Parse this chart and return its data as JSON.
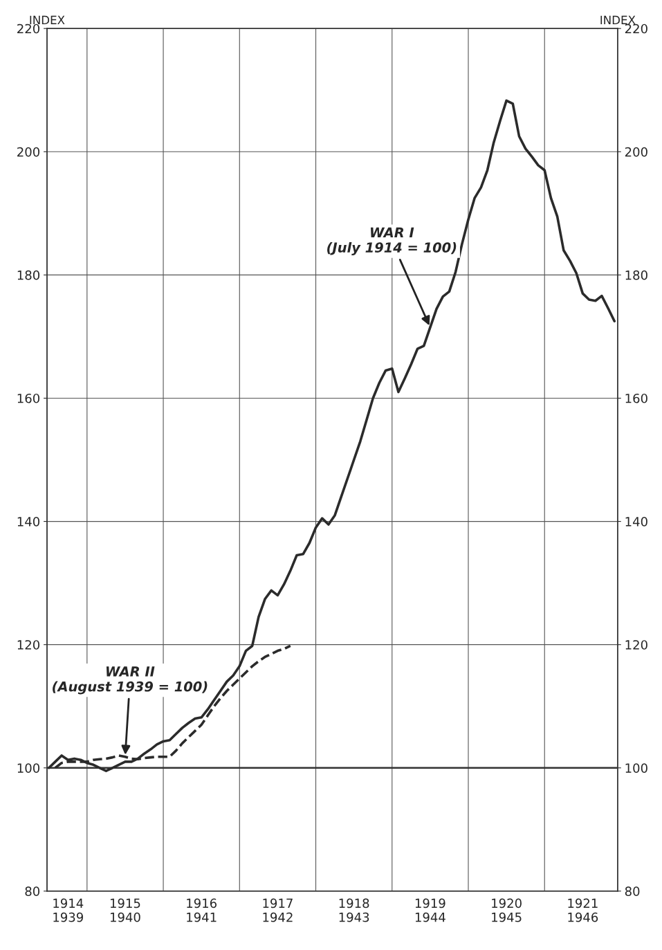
{
  "chart_data": {
    "type": "line",
    "ylabel": "INDEX",
    "y2label": "INDEX",
    "ylim": [
      80,
      220
    ],
    "y2lim": [
      80,
      220
    ],
    "yticks": [
      80,
      100,
      120,
      140,
      160,
      180,
      200,
      220
    ],
    "y2ticks": [
      80,
      100,
      120,
      140,
      160,
      180,
      200,
      220
    ],
    "categories": [
      null,
      null,
      null,
      "1914\n1939",
      null,
      null,
      null,
      null,
      null,
      null,
      null,
      null,
      "1915\n1940",
      null,
      null,
      null,
      null,
      null,
      null,
      null,
      null,
      null,
      null,
      null,
      "1916\n1941",
      null,
      null,
      null,
      null,
      null,
      null,
      null,
      null,
      null,
      null,
      null,
      "1917\n1942",
      null,
      null,
      null,
      null,
      null,
      null,
      null,
      null,
      null,
      null,
      null,
      "1918\n1943",
      null,
      null,
      null,
      null,
      null,
      null,
      null,
      null,
      null,
      null,
      null,
      "1919\n1944",
      null,
      null,
      null,
      null,
      null,
      null,
      null,
      null,
      null,
      null,
      null,
      "1920\n1945",
      null,
      null,
      null,
      null,
      null,
      null,
      null,
      null,
      null,
      null,
      null,
      "1921\n1946",
      null,
      null,
      null,
      null,
      null
    ],
    "grid": true,
    "ref_lines": [
      {
        "axis": "y",
        "value": 100,
        "color": "#333333"
      }
    ],
    "series": [
      {
        "color": "#2b2b2b",
        "line_style": "solid",
        "values": [
          100,
          101,
          102,
          101.3,
          101.5,
          101.3,
          100.8,
          100.5,
          100,
          99.5,
          100,
          100.5,
          101,
          101,
          101.5,
          102.3,
          103,
          103.8,
          104.3,
          104.5,
          105.5,
          106.5,
          107.3,
          108,
          108.2,
          109.5,
          111,
          112.5,
          114,
          115,
          116.5,
          119,
          119.8,
          124.5,
          127.4,
          128.8,
          128,
          129.8,
          132,
          134.5,
          134.7,
          136.5,
          139,
          140.5,
          139.5,
          141,
          144,
          147,
          150,
          153,
          156.5,
          160,
          162.5,
          164.5,
          164.8,
          161,
          163.2,
          165.5,
          168,
          168.5,
          171.5,
          174.5,
          176.5,
          177.3,
          180.5,
          185,
          189,
          192.5,
          194.2,
          197,
          201.5,
          205,
          208.3,
          207.8,
          202.5,
          200.5,
          199.2,
          197.8,
          197,
          192.5,
          189.5,
          184,
          182.3,
          180.3,
          177,
          176,
          175.8,
          176.6,
          174.6,
          172.5
        ]
      },
      {
        "color": "#2b2b2b",
        "line_style": "dashed",
        "values": [
          null,
          100,
          100.8,
          101,
          101,
          101,
          101,
          101.3,
          101.4,
          101.5,
          101.7,
          102,
          101.8,
          101.5,
          101.4,
          101.6,
          101.7,
          101.8,
          101.8,
          101.8,
          102.8,
          104,
          105,
          106,
          107,
          108.5,
          110,
          111.3,
          112.5,
          113.5,
          114.5,
          115.5,
          116.5,
          117.3,
          118,
          118.5,
          119,
          119.3,
          119.8,
          null,
          null,
          null,
          null,
          null,
          null,
          null,
          null,
          null,
          null,
          null,
          null,
          null,
          null,
          null,
          null,
          null,
          null,
          null,
          null,
          null,
          null,
          null,
          null,
          null,
          null,
          null,
          null,
          null,
          null,
          null,
          null,
          null,
          null,
          null,
          null,
          null,
          null,
          null,
          null,
          null,
          null,
          null,
          null,
          null,
          null,
          null,
          null,
          null,
          null,
          null
        ]
      }
    ],
    "annotations": [
      {
        "text": "WAR I\n(July 1914 = 100)",
        "x": "1919\n1944",
        "y": 171.5
      },
      {
        "text": "WAR II\n(August 1939 = 100)",
        "x": "1915\n1940",
        "y": 101.8
      }
    ]
  }
}
